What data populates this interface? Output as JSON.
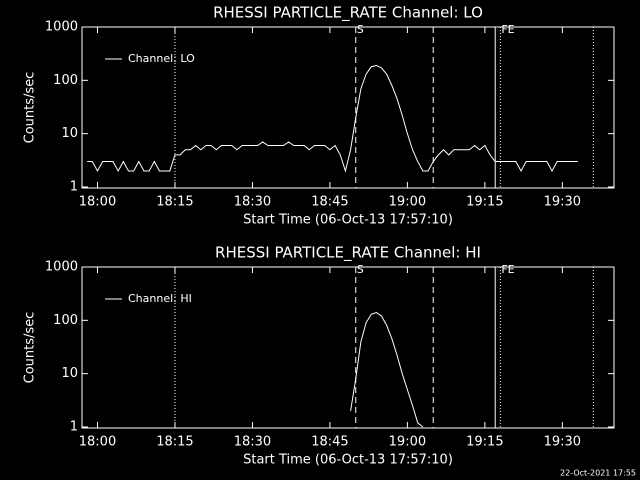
{
  "chart_data": [
    {
      "type": "line",
      "title": "RHESSI PARTICLE_RATE Channel: LO",
      "xlabel": "Start Time (06-Oct-13 17:57:10)",
      "ylabel": "Counts/sec",
      "log": true,
      "xlim": [
        "17:57",
        "19:40"
      ],
      "ylim": [
        1,
        1000
      ],
      "xticks": [
        "18:00",
        "18:15",
        "18:30",
        "18:45",
        "19:00",
        "19:15",
        "19:30"
      ],
      "yticks": [
        1,
        10,
        100,
        1000
      ],
      "legend": "top-left",
      "x": [
        "17:58",
        "17:59",
        "18:00",
        "18:01",
        "18:02",
        "18:03",
        "18:04",
        "18:05",
        "18:06",
        "18:07",
        "18:08",
        "18:09",
        "18:10",
        "18:11",
        "18:12",
        "18:13",
        "18:14",
        "18:15",
        "18:16",
        "18:17",
        "18:18",
        "18:19",
        "18:20",
        "18:21",
        "18:22",
        "18:23",
        "18:24",
        "18:25",
        "18:26",
        "18:27",
        "18:28",
        "18:29",
        "18:30",
        "18:31",
        "18:32",
        "18:33",
        "18:34",
        "18:35",
        "18:36",
        "18:37",
        "18:38",
        "18:39",
        "18:40",
        "18:41",
        "18:42",
        "18:43",
        "18:44",
        "18:45",
        "18:46",
        "18:47",
        "18:48",
        "18:49",
        "18:50",
        "18:51",
        "18:52",
        "18:53",
        "18:54",
        "18:55",
        "18:56",
        "18:57",
        "18:58",
        "18:59",
        "19:00",
        "19:01",
        "19:02",
        "19:03",
        "19:04",
        "19:05",
        "19:06",
        "19:07",
        "19:08",
        "19:09",
        "19:10",
        "19:11",
        "19:12",
        "19:13",
        "19:14",
        "19:15",
        "19:16",
        "19:17",
        "19:18",
        "19:19",
        "19:20",
        "19:21",
        "19:22",
        "19:23",
        "19:24",
        "19:25",
        "19:26",
        "19:27",
        "19:28",
        "19:29",
        "19:30",
        "19:31",
        "19:32",
        "19:33"
      ],
      "series": [
        {
          "name": "Channel: LO",
          "color": "#ffffff",
          "values": [
            3,
            3,
            2,
            3,
            3,
            3,
            2,
            3,
            2,
            2,
            3,
            2,
            2,
            3,
            2,
            2,
            2,
            4,
            4,
            5,
            5,
            6,
            5,
            6,
            6,
            5,
            6,
            6,
            6,
            5,
            6,
            6,
            6,
            6,
            7,
            6,
            6,
            6,
            6,
            7,
            6,
            6,
            6,
            5,
            6,
            6,
            6,
            5,
            6,
            4,
            2,
            5,
            20,
            70,
            130,
            180,
            190,
            170,
            130,
            80,
            45,
            22,
            10,
            5,
            3,
            2,
            2,
            3,
            4,
            5,
            4,
            5,
            5,
            5,
            5,
            6,
            5,
            6,
            4,
            3,
            3,
            3,
            3,
            3,
            2,
            3,
            3,
            3,
            3,
            3,
            2,
            3,
            3,
            3,
            3,
            3
          ]
        }
      ],
      "markers": [
        {
          "x": "18:15",
          "style": "dotted"
        },
        {
          "x": "18:50",
          "style": "dashed",
          "label": "S"
        },
        {
          "x": "19:05",
          "style": "dashed"
        },
        {
          "x": "19:17",
          "style": "solid"
        },
        {
          "x": "19:18",
          "style": "dotted",
          "label": "FE"
        },
        {
          "x": "19:36",
          "style": "dotted"
        }
      ]
    },
    {
      "type": "line",
      "title": "RHESSI PARTICLE_RATE Channel: HI",
      "xlabel": "Start Time (06-Oct-13 17:57:10)",
      "ylabel": "Counts/sec",
      "log": true,
      "xlim": [
        "17:57",
        "19:40"
      ],
      "ylim": [
        1,
        1000
      ],
      "xticks": [
        "18:00",
        "18:15",
        "18:30",
        "18:45",
        "19:00",
        "19:15",
        "19:30"
      ],
      "yticks": [
        1,
        10,
        100,
        1000
      ],
      "legend": "top-left",
      "x": [
        "18:49",
        "18:50",
        "18:51",
        "18:52",
        "18:53",
        "18:54",
        "18:55",
        "18:56",
        "18:57",
        "18:58",
        "18:59",
        "19:00",
        "19:01",
        "19:02",
        "19:03"
      ],
      "series": [
        {
          "name": "Channel: HI",
          "color": "#ffffff",
          "values": [
            2,
            8,
            40,
            90,
            130,
            140,
            120,
            80,
            45,
            22,
            10,
            5,
            2.5,
            1.2,
            1
          ]
        }
      ],
      "markers": [
        {
          "x": "18:15",
          "style": "dotted"
        },
        {
          "x": "18:50",
          "style": "dashed",
          "label": "S"
        },
        {
          "x": "19:05",
          "style": "dashed"
        },
        {
          "x": "19:17",
          "style": "solid"
        },
        {
          "x": "19:18",
          "style": "dotted",
          "label": "FE"
        },
        {
          "x": "19:36",
          "style": "dotted"
        }
      ]
    }
  ],
  "footer": "22-Oct-2021 17:55"
}
